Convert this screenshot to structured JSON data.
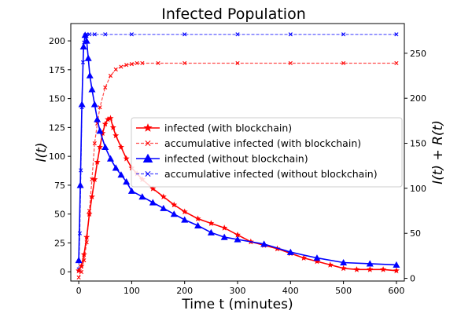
{
  "chart_data": {
    "type": "line",
    "title": "Infected Population",
    "xlabel": "Time t (minutes)",
    "ylabel_left": "I(t)",
    "ylabel_right": "I(t) + R(t)",
    "xlim": [
      -15,
      615
    ],
    "ylim_left": [
      -8,
      215
    ],
    "ylim_right": [
      -3,
      283
    ],
    "x_ticks": [
      0,
      100,
      200,
      300,
      400,
      500,
      600
    ],
    "y_left_ticks": [
      0,
      25,
      50,
      75,
      100,
      125,
      150,
      175,
      200
    ],
    "y_right_ticks": [
      0,
      50,
      100,
      150,
      200,
      250
    ],
    "grid": false,
    "legend_position": "center-right",
    "colors": {
      "with_blockchain": "#ff0000",
      "without_blockchain": "#0000ff"
    },
    "series": [
      {
        "name": "infected (with blockchain)",
        "axis": "left",
        "marker": "star",
        "linestyle": "solid",
        "color": "#ff0000",
        "x": [
          0,
          5,
          10,
          15,
          20,
          25,
          30,
          35,
          40,
          45,
          50,
          55,
          60,
          65,
          70,
          80,
          90,
          100,
          110,
          120,
          140,
          160,
          180,
          200,
          225,
          250,
          275,
          300,
          325,
          350,
          375,
          400,
          425,
          450,
          475,
          500,
          525,
          550,
          575,
          600
        ],
        "y": [
          1,
          5,
          15,
          30,
          50,
          65,
          80,
          95,
          108,
          120,
          128,
          132,
          133,
          125,
          118,
          108,
          98,
          90,
          85,
          80,
          72,
          65,
          58,
          52,
          46,
          42,
          38,
          32,
          26,
          23,
          20,
          16,
          12,
          9,
          6,
          3,
          2,
          2,
          2,
          1
        ]
      },
      {
        "name": "accumulative infected (with blockchain)",
        "axis": "right",
        "marker": "x",
        "linestyle": "dashed",
        "color": "#ff0000",
        "x": [
          0,
          5,
          10,
          15,
          20,
          25,
          30,
          35,
          40,
          50,
          60,
          70,
          80,
          90,
          100,
          110,
          120,
          150,
          200,
          300,
          400,
          500,
          600
        ],
        "y": [
          1,
          7,
          20,
          40,
          75,
          110,
          150,
          172,
          190,
          212,
          225,
          232,
          235,
          237,
          238,
          239,
          239,
          239,
          239,
          239,
          239,
          239,
          239
        ]
      },
      {
        "name": "infected (without blockchain)",
        "axis": "left",
        "marker": "triangle",
        "linestyle": "solid",
        "color": "#0000ff",
        "x": [
          0,
          3,
          6,
          9,
          12,
          15,
          18,
          21,
          25,
          30,
          35,
          40,
          50,
          60,
          70,
          80,
          90,
          100,
          120,
          140,
          160,
          180,
          200,
          225,
          250,
          275,
          300,
          350,
          400,
          450,
          500,
          550,
          600
        ],
        "y": [
          10,
          75,
          145,
          195,
          205,
          200,
          185,
          170,
          158,
          145,
          132,
          122,
          108,
          98,
          90,
          84,
          78,
          70,
          65,
          60,
          55,
          50,
          45,
          40,
          34,
          30,
          28,
          24,
          17,
          12,
          8,
          7,
          6
        ]
      },
      {
        "name": "accumulative infected (without blockchain)",
        "axis": "right",
        "marker": "x",
        "linestyle": "dashed",
        "color": "#0000ff",
        "x": [
          0,
          2,
          4,
          6,
          8,
          10,
          12,
          15,
          20,
          30,
          50,
          100,
          200,
          300,
          400,
          500,
          600
        ],
        "y": [
          10,
          50,
          120,
          190,
          240,
          262,
          270,
          271,
          271,
          271,
          271,
          271,
          271,
          271,
          271,
          271,
          271
        ]
      }
    ]
  }
}
